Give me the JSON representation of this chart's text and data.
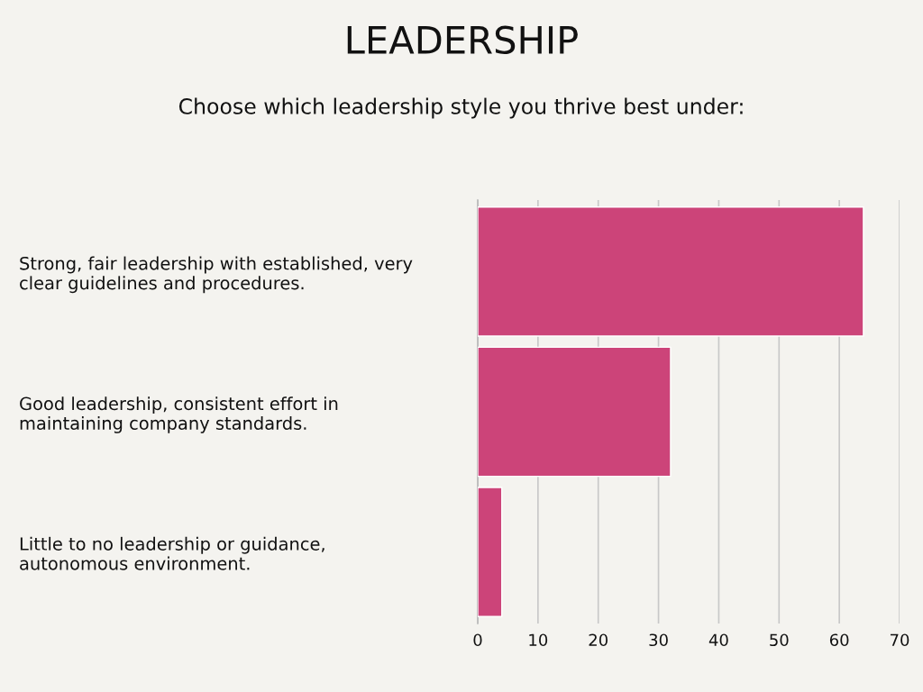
{
  "chart_data": {
    "type": "bar",
    "orientation": "horizontal",
    "title": "LEADERSHIP",
    "subtitle": "Choose which leadership style you thrive best under:",
    "categories": [
      "Strong, fair leadership with established, very\nclear guidelines and procedures.",
      "Good leadership, consistent effort in\nmaintaining company standards.",
      "Little to no leadership or guidance,\nautonomous environment."
    ],
    "values": [
      64,
      32,
      4
    ],
    "color": "#cc4479",
    "xlim": [
      0,
      70
    ],
    "xticks": [
      0,
      10,
      20,
      30,
      40,
      50,
      60,
      70
    ],
    "grid": "x"
  }
}
